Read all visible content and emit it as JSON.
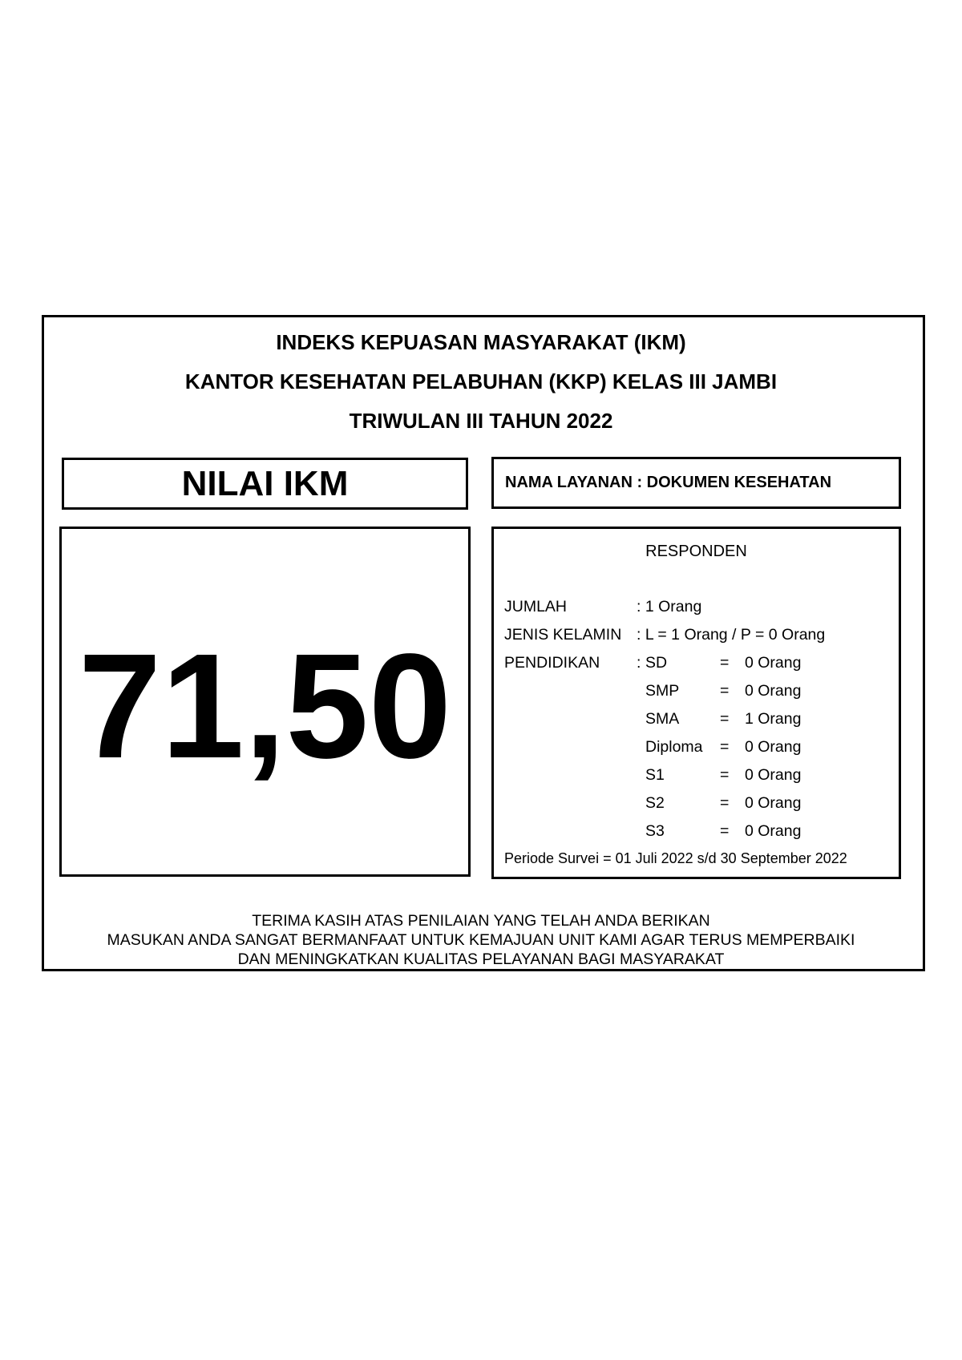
{
  "header": {
    "line1": "INDEKS KEPUASAN MASYARAKAT (IKM)",
    "line2": "KANTOR KESEHATAN PELABUHAN (KKP) KELAS III JAMBI",
    "line3": "TRIWULAN III TAHUN 2022"
  },
  "nilai": {
    "label": "NILAI IKM",
    "value": "71,50"
  },
  "layanan": "NAMA LAYANAN : DOKUMEN KESEHATAN",
  "responden": {
    "title": "RESPONDEN",
    "jumlah_label": "JUMLAH",
    "jumlah_value": ": 1 Orang",
    "kelamin_label": "JENIS KELAMIN",
    "kelamin_value": ": L =  1  Orang  / P = 0 Orang",
    "pendidikan_label": "PENDIDIKAN",
    "pendidikan_colon": ":",
    "pendidikan": [
      {
        "level": "SD",
        "eq": "=",
        "value": "0 Orang"
      },
      {
        "level": "SMP",
        "eq": "=",
        "value": "0 Orang"
      },
      {
        "level": "SMA",
        "eq": "=",
        "value": "1 Orang"
      },
      {
        "level": "Diploma",
        "eq": "=",
        "value": "0 Orang"
      },
      {
        "level": "S1",
        "eq": "=",
        "value": "0 Orang"
      },
      {
        "level": "S2",
        "eq": "=",
        "value": "0 Orang"
      },
      {
        "level": "S3",
        "eq": "=",
        "value": "0  Orang"
      }
    ],
    "periode": "Periode Survei = 01 Juli 2022 s/d 30 September 2022"
  },
  "footer": {
    "line1": "TERIMA KASIH ATAS PENILAIAN YANG TELAH ANDA BERIKAN",
    "line2": "MASUKAN ANDA SANGAT BERMANFAAT UNTUK KEMAJUAN UNIT KAMI AGAR TERUS MEMPERBAIKI",
    "line3": "DAN MENINGKATKAN KUALITAS PELAYANAN BAGI MASYARAKAT"
  }
}
